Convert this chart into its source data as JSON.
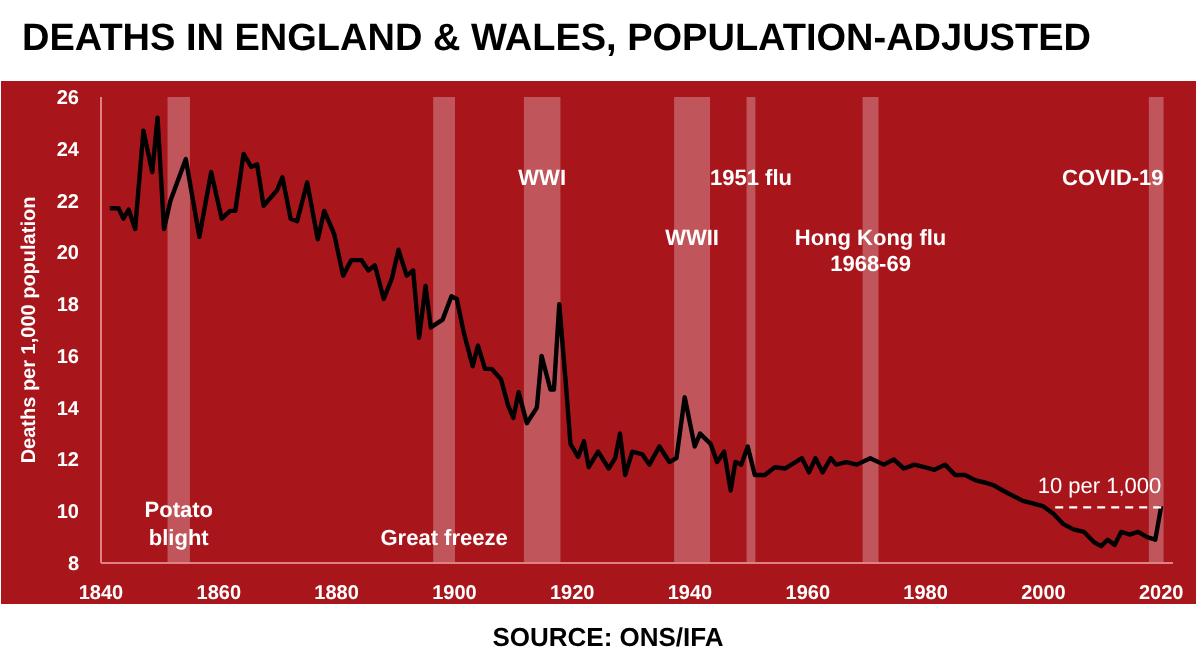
{
  "chart_data": {
    "type": "line",
    "title": "DEATHS IN ENGLAND & WALES, POPULATION-ADJUSTED",
    "ylabel": "Deaths per 1,000 population",
    "xlim": [
      1840,
      2022
    ],
    "xticks": [
      1840,
      1860,
      1880,
      1900,
      1920,
      1940,
      1960,
      1980,
      2000,
      2020
    ],
    "ylim": [
      8,
      26
    ],
    "yticks": [
      8,
      10,
      12,
      14,
      16,
      18,
      20,
      22,
      24,
      26
    ],
    "grid": false,
    "line_style": "solid",
    "series": [
      {
        "color": "#000000",
        "x": [
          1841.5,
          1843,
          1843.8,
          1844.7,
          1845.8,
          1847.2,
          1848.7,
          1849.6,
          1850.7,
          1851.8,
          1854.4,
          1856.7,
          1858.7,
          1860.5,
          1861.9,
          1862.8,
          1864.2,
          1865.5,
          1866.5,
          1867.6,
          1869.9,
          1870.8,
          1872.2,
          1873.3,
          1875,
          1876.8,
          1877.9,
          1879.6,
          1881.1,
          1882.5,
          1884.2,
          1885.4,
          1886.5,
          1888,
          1889.4,
          1890.5,
          1891.9,
          1893,
          1894,
          1895.1,
          1896,
          1898,
          1899.5,
          1900.4,
          1901.6,
          1903.1,
          1904,
          1905.2,
          1906.3,
          1907.9,
          1909.1,
          1910,
          1910.9,
          1912.3,
          1914,
          1914.8,
          1916.3,
          1916.9,
          1917.8,
          1919,
          1919.7,
          1921,
          1922,
          1922.8,
          1924.4,
          1926.2,
          1927.3,
          1928.1,
          1929,
          1930.2,
          1931.9,
          1933.1,
          1934.8,
          1936.5,
          1937.7,
          1939.1,
          1940.8,
          1941.7,
          1943.5,
          1944.6,
          1945.8,
          1946.9,
          1947.7,
          1948.7,
          1949.8,
          1951,
          1952.7,
          1954.4,
          1956.1,
          1957.9,
          1959,
          1960.2,
          1961.3,
          1962.5,
          1963.9,
          1964.8,
          1966.5,
          1968.3,
          1970.6,
          1972.9,
          1974.6,
          1976.3,
          1978.1,
          1979.8,
          1981.5,
          1983.3,
          1985,
          1986.7,
          1988.4,
          1990.2,
          1991.6,
          1993.1,
          1994.8,
          1996.5,
          1998.2,
          1999.9,
          2001.7,
          2003.4,
          2005.1,
          2006.9,
          2008.6,
          2009.8,
          2010.9,
          2012.1,
          2013.2,
          2014.6,
          2016.1,
          2017.6,
          2019,
          2020
        ],
        "values": [
          21.7,
          21.7,
          21.3,
          21.65,
          20.9,
          24.7,
          23.1,
          25.2,
          20.9,
          22,
          23.6,
          20.6,
          23.1,
          21.3,
          21.6,
          21.6,
          23.8,
          23.3,
          23.4,
          21.8,
          22.4,
          22.9,
          21.3,
          21.2,
          22.7,
          20.5,
          21.6,
          20.7,
          19.1,
          19.7,
          19.7,
          19.3,
          19.5,
          18.2,
          19,
          20.1,
          19.1,
          19.3,
          16.7,
          18.7,
          17.1,
          17.4,
          18.3,
          18.2,
          16.9,
          15.6,
          16.4,
          15.5,
          15.5,
          15.1,
          14.1,
          13.6,
          14.6,
          13.4,
          14,
          16,
          14.7,
          14.7,
          18,
          14.7,
          12.6,
          12.1,
          12.7,
          11.7,
          12.3,
          11.65,
          12.05,
          13,
          11.4,
          12.3,
          12.2,
          11.8,
          12.5,
          11.9,
          12.05,
          14.4,
          12.5,
          13,
          12.6,
          11.9,
          12.3,
          10.8,
          11.9,
          11.8,
          12.5,
          11.4,
          11.4,
          11.7,
          11.65,
          11.9,
          12.05,
          11.5,
          12.05,
          11.5,
          12.05,
          11.8,
          11.9,
          11.8,
          12.05,
          11.8,
          12,
          11.65,
          11.8,
          11.7,
          11.6,
          11.8,
          11.4,
          11.4,
          11.2,
          11.1,
          11,
          10.8,
          10.6,
          10.4,
          10.3,
          10.2,
          9.9,
          9.5,
          9.3,
          9.2,
          8.8,
          8.65,
          8.9,
          8.7,
          9.2,
          9.1,
          9.2,
          9,
          8.9,
          10.2
        ]
      },
      {
        "name": "10 per 1,000",
        "color": "#ffffff",
        "line_style": "dashed",
        "x": [
          2002,
          2020
        ],
        "values": [
          10.15,
          10.15
        ]
      }
    ],
    "bands": [
      {
        "axis": "x",
        "from": 1851.3,
        "to": 1855.1,
        "color": "#ffffff",
        "label": "Potato\nblight"
      },
      {
        "axis": "x",
        "from": 1896.4,
        "to": 1900.1,
        "color": "#ffffff",
        "label": "Great freeze"
      },
      {
        "axis": "x",
        "from": 1911.8,
        "to": 1918,
        "color": "#ffffff",
        "label": "WWI"
      },
      {
        "axis": "x",
        "from": 1937.3,
        "to": 1943.4,
        "color": "#ffffff",
        "label": "WWII"
      },
      {
        "axis": "x",
        "from": 1949.6,
        "to": 1951.1,
        "color": "#ffffff",
        "label": "1951 flu"
      },
      {
        "axis": "x",
        "from": 1969.3,
        "to": 1972,
        "color": "#ffffff",
        "label": "Hong Kong flu\n1968-69"
      },
      {
        "axis": "x",
        "from": 2017.9,
        "to": 2020.4,
        "color": "#ffffff",
        "label": "COVID-19"
      }
    ],
    "annotations": [
      "SOURCE: ONS/IFA"
    ]
  }
}
